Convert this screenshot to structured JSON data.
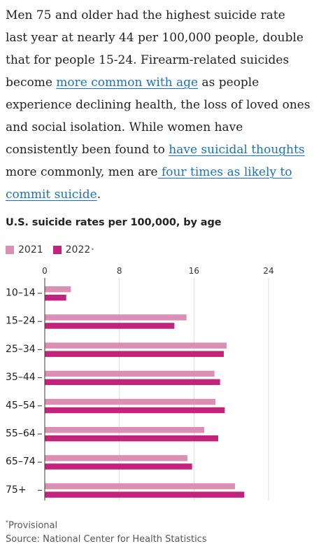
{
  "article": {
    "t1": "Men 75 and older had the highest suicide rate last year at nearly 44 per 100,000 people, double that for people 15-24. Firearm-related suicides become ",
    "link1": "more common with age",
    "t2": " as people experience declining health, the loss of loved ones and social isolation. While women have consistently been found to ",
    "link2": "have suicidal thoughts",
    "t3": " more commonly, men are",
    "link3": " four times as likely to commit suicide",
    "t4": "."
  },
  "colors": {
    "series2021": "#db8fb5",
    "series2022": "#c2237b",
    "axis": "#333333",
    "grid": "#dddddd",
    "link": "#1a73b8"
  },
  "chart_data": {
    "type": "bar",
    "orientation": "horizontal",
    "title": "U.S. suicide rates per 100,000, by age",
    "categories": [
      "10–14",
      "15–24",
      "25–34",
      "35–44",
      "45–54",
      "55–64",
      "65–74",
      "75+"
    ],
    "series": [
      {
        "name": "2021",
        "values": [
          2.8,
          15.2,
          19.5,
          18.2,
          18.3,
          17.1,
          15.3,
          20.4
        ]
      },
      {
        "name": "2022",
        "marker": "*",
        "values": [
          2.3,
          13.9,
          19.2,
          18.8,
          19.3,
          18.6,
          15.8,
          21.4
        ]
      }
    ],
    "xticks": [
      "0",
      "8",
      "16",
      "24"
    ],
    "xlim": [
      0,
      24
    ],
    "grid": true,
    "legend": "top-left"
  },
  "notes": {
    "footnote_marker": "*",
    "footnote": "Provisional",
    "source": "Source: National Center for Health Statistics"
  }
}
